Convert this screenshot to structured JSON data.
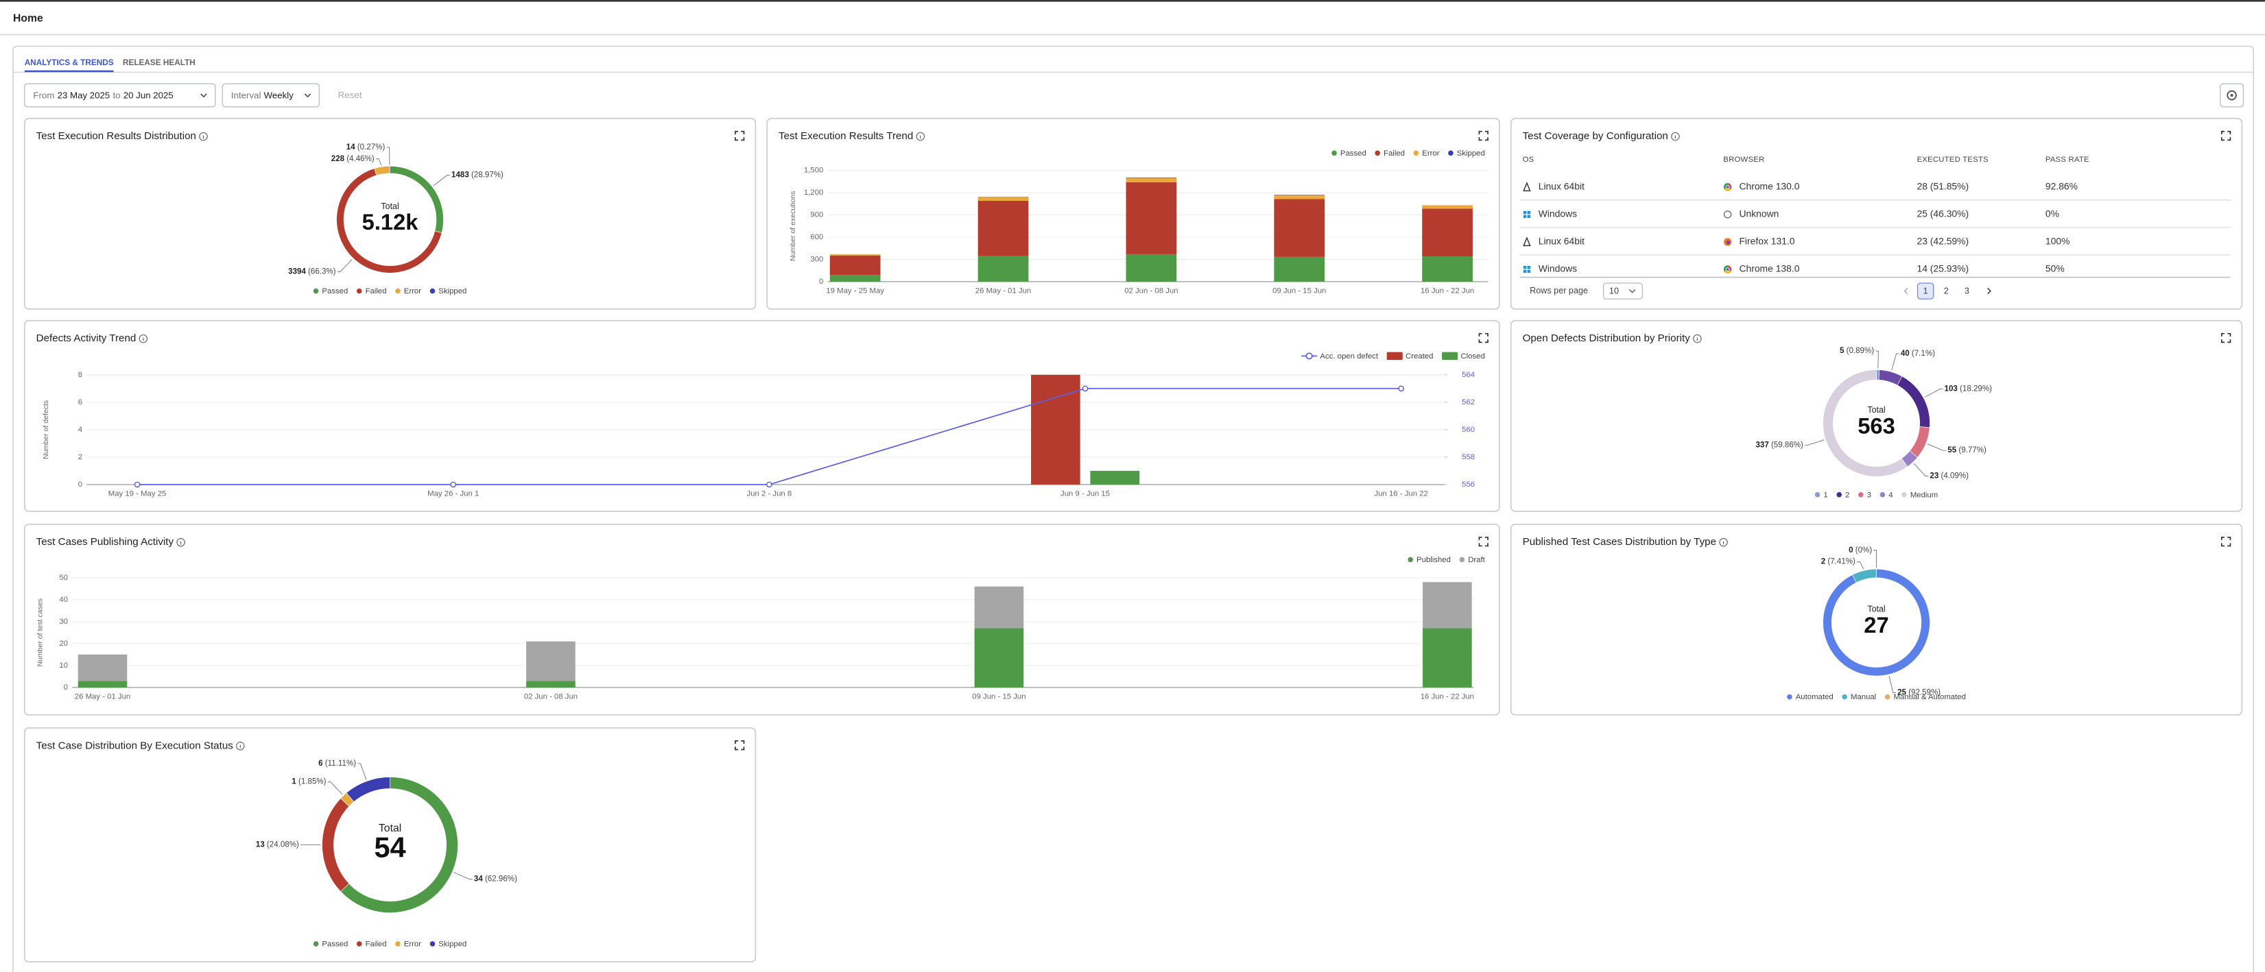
{
  "header": {
    "title": "Home"
  },
  "tabs": [
    "ANALYTICS & TRENDS",
    "RELEASE HEALTH"
  ],
  "filters": {
    "from_label": "From",
    "from": "23 May 2025",
    "to_label": "to",
    "to": "20 Jun 2025",
    "interval_label": "Interval",
    "interval": "Weekly",
    "reset": "Reset"
  },
  "coverage_table": {
    "title": "Test Coverage by Configuration",
    "columns": [
      "OS",
      "BROWSER",
      "EXECUTED TESTS",
      "PASS RATE"
    ],
    "rows": [
      [
        "Linux 64bit",
        "Chrome 130.0",
        "28 (51.85%)",
        "92.86%"
      ],
      [
        "Windows",
        "Unknown",
        "25 (46.30%)",
        "0%"
      ],
      [
        "Linux 64bit",
        "Firefox 131.0",
        "23 (42.59%)",
        "100%"
      ],
      [
        "Windows",
        "Chrome 138.0",
        "14 (25.93%)",
        "50%"
      ]
    ],
    "rows_per_page_label": "Rows per page",
    "rows_per_page": 10,
    "pages": [
      1,
      2,
      3
    ]
  },
  "chart_data": [
    {
      "type": "donut",
      "title": "Test Execution Results Distribution",
      "categories": [
        "Passed",
        "Failed",
        "Error",
        "Skipped"
      ],
      "values": [
        1483,
        3394,
        228,
        14
      ],
      "percent_labels": [
        "(28.97%)",
        "(66.3%)",
        "(4.46%)",
        "(0.27%)"
      ],
      "colors": [
        "#4e9a47",
        "#b63b2f",
        "#e9a93c",
        "#3b3db3"
      ],
      "center_label": "Total",
      "total": "5.12k"
    },
    {
      "type": "stacked_bar",
      "title": "Test Execution Results Trend",
      "categories": [
        "19 May - 25 May",
        "26 May - 01 Jun",
        "02 Jun - 08 Jun",
        "09 Jun - 15 Jun",
        "16 Jun - 22 Jun"
      ],
      "series": [
        {
          "name": "Passed",
          "color": "#4e9a47",
          "values": [
            90,
            350,
            370,
            333,
            340
          ]
        },
        {
          "name": "Failed",
          "color": "#b63b2f",
          "values": [
            260,
            740,
            970,
            780,
            644
          ]
        },
        {
          "name": "Error",
          "color": "#e9a93c",
          "values": [
            20,
            50,
            60,
            55,
            43
          ]
        },
        {
          "name": "Skipped",
          "color": "#3b3db3",
          "values": [
            0,
            3,
            5,
            4,
            2
          ]
        }
      ],
      "ylabel": "Number of executions",
      "ylim": [
        0,
        1500
      ],
      "yticks": [
        0,
        300,
        600,
        900,
        {
          "value": 1200,
          "label": "1,200"
        },
        {
          "value": 1500,
          "label": "1,500"
        }
      ],
      "grid": true
    },
    {
      "type": "combo",
      "title": "Defects Activity Trend",
      "categories": [
        "May 19 - May 25",
        "May 26 - Jun 1",
        "Jun 2 - Jun 8",
        "Jun 9 - Jun 15",
        "Jun 16 - Jun 22"
      ],
      "series": [
        {
          "name": "Acc. open defect",
          "color": "#5b5fe0",
          "kind": "line",
          "axis": "y2",
          "values": [
            556,
            556,
            556,
            563,
            563
          ]
        },
        {
          "name": "Created",
          "color": "#b63b2f",
          "kind": "bar",
          "values": [
            0,
            0,
            0,
            8,
            0
          ]
        },
        {
          "name": "Closed",
          "color": "#4e9a47",
          "kind": "bar",
          "values": [
            0,
            0,
            0,
            1,
            0
          ]
        }
      ],
      "ylabel": "Number of defects",
      "ylim": [
        0,
        8
      ],
      "yticks": [
        0,
        2,
        4,
        6,
        8
      ],
      "y2lim": [
        556,
        564
      ],
      "y2ticks": [
        556,
        558,
        560,
        562,
        564
      ],
      "grid": true
    },
    {
      "type": "donut",
      "title": "Open Defects Distribution by Priority",
      "categories": [
        "1",
        null,
        "2",
        "3",
        "4",
        "Medium"
      ],
      "values": [
        5,
        40,
        103,
        55,
        23,
        337
      ],
      "percent_labels": [
        "(0.89%)",
        "(7.1%)",
        "(18.29%)",
        "(9.77%)",
        "(4.09%)",
        "(59.86%)"
      ],
      "colors": [
        "#8b9cc8",
        "#6b4aa3",
        "#4b2a8c",
        "#d8707f",
        "#9a80c6",
        "#d9d0df"
      ],
      "center_label": "Total",
      "total": "563"
    },
    {
      "type": "stacked_bar",
      "title": "Test Cases Publishing Activity",
      "categories": [
        "26 May - 01 Jun",
        "02 Jun - 08 Jun",
        "09 Jun - 15 Jun",
        "16 Jun - 22 Jun"
      ],
      "series": [
        {
          "name": "Published",
          "color": "#4e9a47",
          "values": [
            3,
            3,
            27,
            27
          ]
        },
        {
          "name": "Draft",
          "color": "#a6a6a6",
          "values": [
            12,
            18,
            19,
            21
          ]
        }
      ],
      "ylabel": "Number of test cases",
      "ylim": [
        0,
        50
      ],
      "yticks": [
        0,
        10,
        20,
        30,
        40,
        50
      ],
      "grid": true
    },
    {
      "type": "donut",
      "title": "Published Test Cases Distribution by Type",
      "categories": [
        "Automated",
        "Manual",
        "Manual & Automated"
      ],
      "values": [
        25,
        2,
        0
      ],
      "percent_labels": [
        "(92.59%)",
        "(7.41%)",
        "(0%)"
      ],
      "colors": [
        "#5b80ea",
        "#4fb1c4",
        "#e8a96c"
      ],
      "center_label": "Total",
      "total": "27"
    },
    {
      "type": "donut",
      "title": "Test Case Distribution By Execution Status",
      "categories": [
        "Passed",
        "Failed",
        "Error",
        "Skipped"
      ],
      "values": [
        34,
        13,
        1,
        6
      ],
      "percent_labels": [
        "(62.96%)",
        "(24.08%)",
        "(1.85%)",
        "(11.11%)"
      ],
      "colors": [
        "#4e9a47",
        "#b63b2f",
        "#e9a93c",
        "#3b3db3"
      ],
      "center_label": "Total",
      "total": "54"
    }
  ]
}
